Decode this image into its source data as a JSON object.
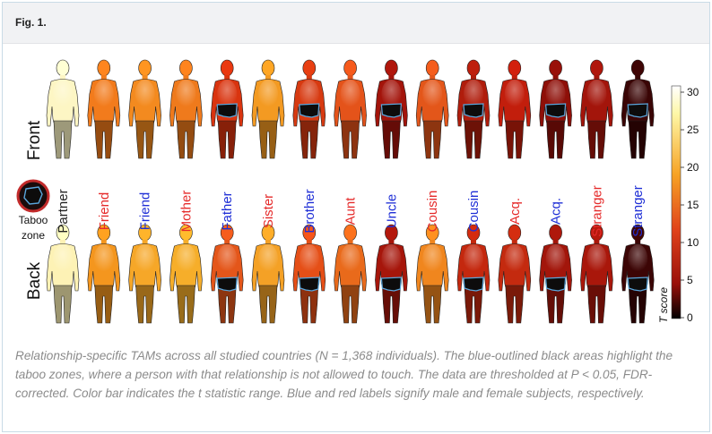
{
  "figure": {
    "label": "Fig. 1.",
    "row_labels": {
      "front": "Front",
      "back": "Back"
    },
    "columns": [
      {
        "label": "Partner",
        "sex": "neutral",
        "front_color": "#fdf6c4",
        "back_color": "#fdf2b5",
        "taboo": false
      },
      {
        "label": "Friend",
        "sex": "female",
        "front_color": "#f27b1c",
        "back_color": "#f4961e",
        "taboo": false
      },
      {
        "label": "Friend",
        "sex": "male",
        "front_color": "#f38a1f",
        "back_color": "#f6a728",
        "taboo": false
      },
      {
        "label": "Mother",
        "sex": "female",
        "front_color": "#ef7a1c",
        "back_color": "#f6ae2a",
        "taboo": false
      },
      {
        "label": "Father",
        "sex": "male",
        "front_color": "#d9340f",
        "back_color": "#e4561a",
        "taboo": true
      },
      {
        "label": "Sister",
        "sex": "female",
        "front_color": "#f39a22",
        "back_color": "#f4a126",
        "taboo": false
      },
      {
        "label": "Brother",
        "sex": "male",
        "front_color": "#d73a11",
        "back_color": "#e54f17",
        "taboo": true
      },
      {
        "label": "Aunt",
        "sex": "female",
        "front_color": "#e4531a",
        "back_color": "#e96a1b",
        "taboo": false
      },
      {
        "label": "Uncle",
        "sex": "male",
        "front_color": "#a3140b",
        "back_color": "#a6160b",
        "taboo": true
      },
      {
        "label": "Cousin",
        "sex": "female",
        "front_color": "#e3561a",
        "back_color": "#f0861e",
        "taboo": false
      },
      {
        "label": "Cousin",
        "sex": "male",
        "front_color": "#b01d0c",
        "back_color": "#c4280e",
        "taboo": true
      },
      {
        "label": "Acq.",
        "sex": "female",
        "front_color": "#c21e0c",
        "back_color": "#c42a0f",
        "taboo": false
      },
      {
        "label": "Acq.",
        "sex": "male",
        "front_color": "#8e0f08",
        "back_color": "#a2160b",
        "taboo": true
      },
      {
        "label": "Stranger",
        "sex": "female",
        "front_color": "#a3150b",
        "back_color": "#a9170b",
        "taboo": false
      },
      {
        "label": "Stranger",
        "sex": "male",
        "front_color": "#3a0505",
        "back_color": "#3c0505",
        "taboo": true
      }
    ],
    "taboo_legend": {
      "line1": "Taboo",
      "line2": "zone"
    },
    "colorbar": {
      "ticks": [
        "30",
        "25",
        "20",
        "15",
        "10",
        "5",
        "0"
      ],
      "title": "T score",
      "colors": {
        "max": "#ffffff",
        "high": "#fef7a6",
        "mid_high": "#f7a325",
        "mid": "#e0421a",
        "low": "#9a100a",
        "min": "#000000"
      }
    },
    "colors": {
      "male": "#1f2fd6",
      "female": "#e52a2a",
      "neutral": "#222222",
      "taboo_outline": "#5aa6dc",
      "taboo_fill": "#0d0c0c"
    },
    "caption": "Relationship-specific TAMs across all studied countries (N = 1,368 individuals). The blue-outlined black areas highlight the taboo zones, where a person with that relationship is not allowed to touch. The data are thresholded at P < 0.05, FDR-corrected. Color bar indicates the t statistic range. Blue and red labels signify male and female subjects, respectively."
  }
}
